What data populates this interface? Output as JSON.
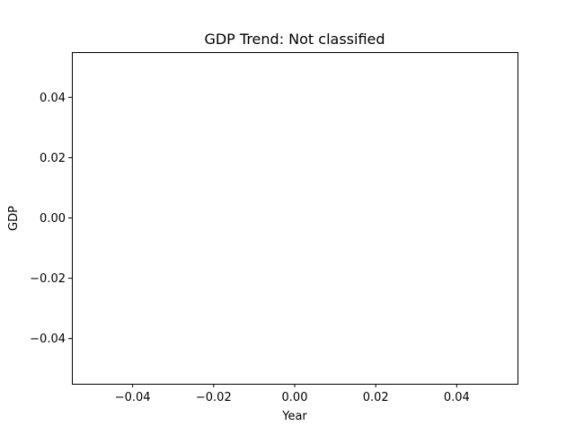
{
  "chart_data": {
    "type": "line",
    "title": "GDP Trend: Not classified",
    "xlabel": "Year",
    "ylabel": "GDP",
    "x": [],
    "series": [
      {
        "values": []
      }
    ],
    "xlim": [
      -0.055,
      0.055
    ],
    "ylim": [
      -0.055,
      0.055
    ],
    "xticks": [
      -0.04,
      -0.02,
      0.0,
      0.02,
      0.04
    ],
    "yticks": [
      -0.04,
      -0.02,
      0.0,
      0.02,
      0.04
    ],
    "xtick_labels": [
      "−0.04",
      "−0.02",
      "0.00",
      "0.02",
      "0.04"
    ],
    "ytick_labels": [
      "−0.04",
      "−0.02",
      "0.00",
      "0.02",
      "0.04"
    ],
    "grid": false,
    "legend": "none"
  }
}
